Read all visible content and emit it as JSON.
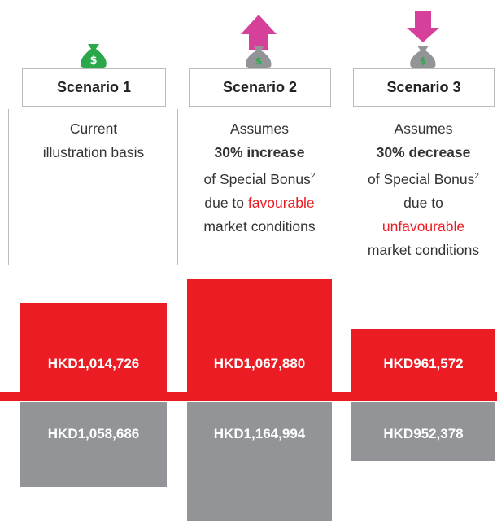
{
  "columns": [
    {
      "header": "Scenario 1",
      "description": [
        [
          {
            "text": "Current"
          }
        ],
        [
          {
            "text": "illustration basis"
          }
        ]
      ],
      "upper_label": "HKD1,014,726",
      "lower_label": "HKD1,058,686"
    },
    {
      "header": "Scenario 2",
      "description": [
        [
          {
            "text": "Assumes"
          }
        ],
        [
          {
            "text": "30% increase",
            "bold": true
          }
        ],
        [
          {
            "text": "of Special Bonus"
          },
          {
            "text": "2",
            "sup": true
          }
        ],
        [
          {
            "text": "due to "
          },
          {
            "text": "favourable",
            "red": true
          }
        ],
        [
          {
            "text": "market conditions"
          }
        ]
      ],
      "upper_label": "HKD1,067,880",
      "lower_label": "HKD1,164,994"
    },
    {
      "header": "Scenario 3",
      "description": [
        [
          {
            "text": "Assumes"
          }
        ],
        [
          {
            "text": "30% decrease",
            "bold": true
          }
        ],
        [
          {
            "text": "of Special Bonus"
          },
          {
            "text": "2",
            "sup": true
          }
        ],
        [
          {
            "text": "due to"
          }
        ],
        [
          {
            "text": "unfavourable",
            "red": true
          }
        ],
        [
          {
            "text": "market conditions"
          }
        ]
      ],
      "upper_label": "HKD961,572",
      "lower_label": "HKD952,378"
    }
  ]
}
